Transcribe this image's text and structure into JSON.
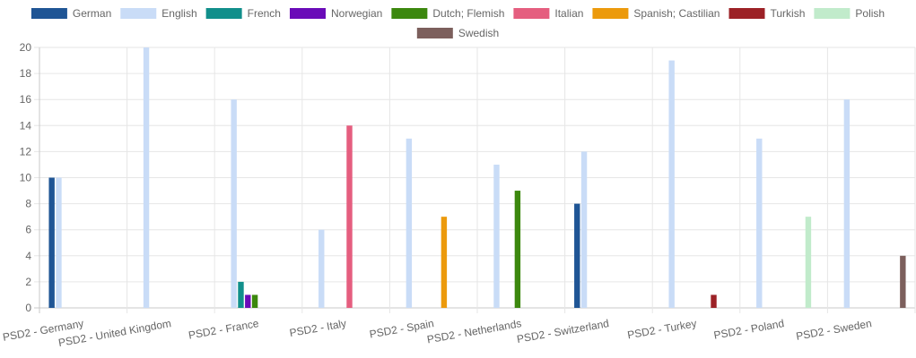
{
  "chart_data": {
    "type": "bar",
    "categories": [
      "PSD2 - Germany",
      "PSD2 - United Kingdom",
      "PSD2 - France",
      "PSD2 - Italy",
      "PSD2 - Spain",
      "PSD2 - Netherlands",
      "PSD2 - Switzerland",
      "PSD2 - Turkey",
      "PSD2 - Poland",
      "PSD2 - Sweden"
    ],
    "series": [
      {
        "name": "German",
        "color": "#1f5595",
        "values": [
          10,
          0,
          0,
          0,
          0,
          0,
          8,
          0,
          0,
          0
        ]
      },
      {
        "name": "English",
        "color": "#c9dcf7",
        "values": [
          10,
          20,
          16,
          6,
          13,
          11,
          12,
          19,
          13,
          16
        ]
      },
      {
        "name": "French",
        "color": "#118f8b",
        "values": [
          0,
          0,
          2,
          0,
          0,
          0,
          0,
          0,
          0,
          0
        ]
      },
      {
        "name": "Norwegian",
        "color": "#6a0bb8",
        "values": [
          0,
          0,
          1,
          0,
          0,
          0,
          0,
          0,
          0,
          0
        ]
      },
      {
        "name": "Dutch; Flemish",
        "color": "#3c880e",
        "values": [
          0,
          0,
          1,
          0,
          0,
          9,
          0,
          0,
          0,
          0
        ]
      },
      {
        "name": "Italian",
        "color": "#e55e7f",
        "values": [
          0,
          0,
          0,
          14,
          0,
          0,
          0,
          0,
          0,
          0
        ]
      },
      {
        "name": "Spanish; Castilian",
        "color": "#ec9a0c",
        "values": [
          0,
          0,
          0,
          0,
          7,
          0,
          0,
          0,
          0,
          0
        ]
      },
      {
        "name": "Turkish",
        "color": "#9c2126",
        "values": [
          0,
          0,
          0,
          0,
          0,
          0,
          0,
          1,
          0,
          0
        ]
      },
      {
        "name": "Polish",
        "color": "#c1ebcb",
        "values": [
          0,
          0,
          0,
          0,
          0,
          0,
          0,
          0,
          7,
          0
        ]
      },
      {
        "name": "Swedish",
        "color": "#7c5f5c",
        "values": [
          0,
          0,
          0,
          0,
          0,
          0,
          0,
          0,
          0,
          4
        ]
      }
    ],
    "ylim": [
      0,
      20
    ],
    "yticks": [
      0,
      2,
      4,
      6,
      8,
      10,
      12,
      14,
      16,
      18,
      20
    ],
    "grid": true,
    "legend_position": "top"
  }
}
